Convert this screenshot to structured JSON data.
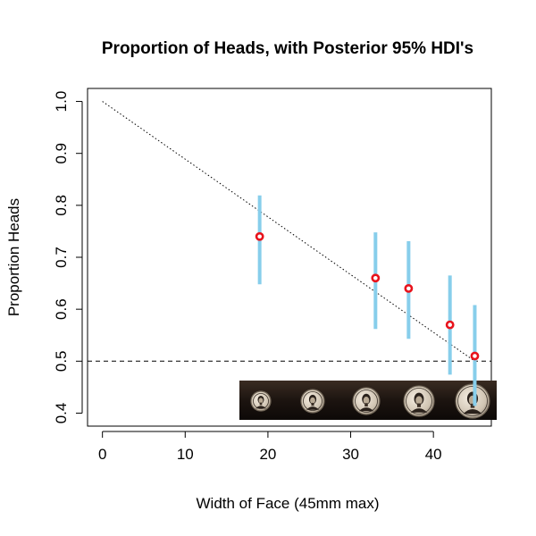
{
  "chart_data": {
    "type": "scatter",
    "title": "Proportion of Heads, with Posterior 95% HDI's",
    "xlabel": "Width of Face (45mm max)",
    "ylabel": "Proportion Heads",
    "xlim": [
      -1.8,
      47
    ],
    "ylim": [
      0.375,
      1.025
    ],
    "x_ticks": [
      0,
      10,
      20,
      30,
      40
    ],
    "y_ticks": [
      0.4,
      0.5,
      0.6,
      0.7,
      0.8,
      0.9,
      1.0
    ],
    "x_tick_labels": [
      "0",
      "10",
      "20",
      "30",
      "40"
    ],
    "y_tick_labels": [
      "0.4",
      "0.5",
      "0.6",
      "0.7",
      "0.8",
      "0.9",
      "1.0"
    ],
    "points": [
      {
        "x": 19,
        "y": 0.74,
        "hdi_low": 0.648,
        "hdi_high": 0.819
      },
      {
        "x": 33,
        "y": 0.66,
        "hdi_low": 0.562,
        "hdi_high": 0.748
      },
      {
        "x": 37,
        "y": 0.64,
        "hdi_low": 0.543,
        "hdi_high": 0.731
      },
      {
        "x": 42,
        "y": 0.57,
        "hdi_low": 0.474,
        "hdi_high": 0.665
      },
      {
        "x": 45,
        "y": 0.51,
        "hdi_low": 0.414,
        "hdi_high": 0.608
      }
    ],
    "trend_line": {
      "x": [
        0,
        45
      ],
      "y": [
        1.0,
        0.5
      ],
      "style": "dotted"
    },
    "reference_line": {
      "y": 0.5,
      "style": "dashed"
    },
    "grid": false,
    "colors": {
      "point_stroke": "#e8131c",
      "hdi_bar": "#87ceeb",
      "line": "#000000"
    },
    "inset_image": {
      "description_icon": "coin-row-photo-icon",
      "coin_count": 5
    }
  }
}
